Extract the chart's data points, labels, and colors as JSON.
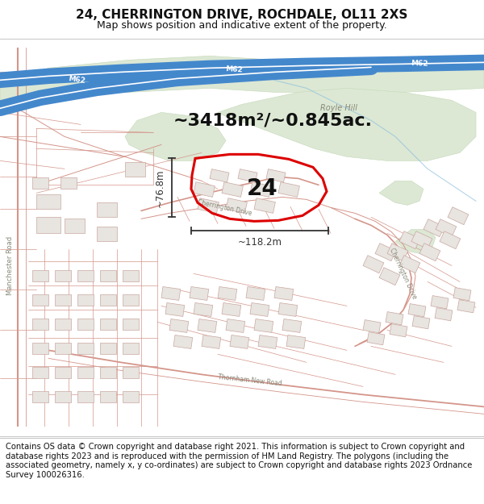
{
  "title_line1": "24, CHERRINGTON DRIVE, ROCHDALE, OL11 2XS",
  "title_line2": "Map shows position and indicative extent of the property.",
  "area_text": "~3418m²/~0.845ac.",
  "label_number": "24",
  "dim_width": "~118.2m",
  "dim_height": "~76.8m",
  "footer_text": "Contains OS data © Crown copyright and database right 2021. This information is subject to Crown copyright and database rights 2023 and is reproduced with the permission of HM Land Registry. The polygons (including the associated geometry, namely x, y co-ordinates) are subject to Crown copyright and database rights 2023 Ordnance Survey 100026316.",
  "map_bg": "#ffffff",
  "road_color": "#d4958a",
  "road_lw": 0.8,
  "motorway_color": "#4488cc",
  "motorway_lw": 14,
  "motorway_center_color": "#ffffff",
  "green_color": "#dce8d4",
  "green_edge": "#c5d8b8",
  "building_face": "#e8e4e0",
  "building_edge": "#c8a8a0",
  "property_color": "#dd0000",
  "property_lw": 2.2,
  "annot_color": "#111111",
  "dim_color": "#333333",
  "roylehill_color": "#888878",
  "manchesterrd_color": "#888878",
  "label_road_color": "#aaaaaa",
  "blue_light": "#aaccee",
  "title_fs": 11,
  "subtitle_fs": 9,
  "footer_fs": 7.2,
  "area_fs": 16,
  "num_fs": 20,
  "dim_fs": 8.5
}
